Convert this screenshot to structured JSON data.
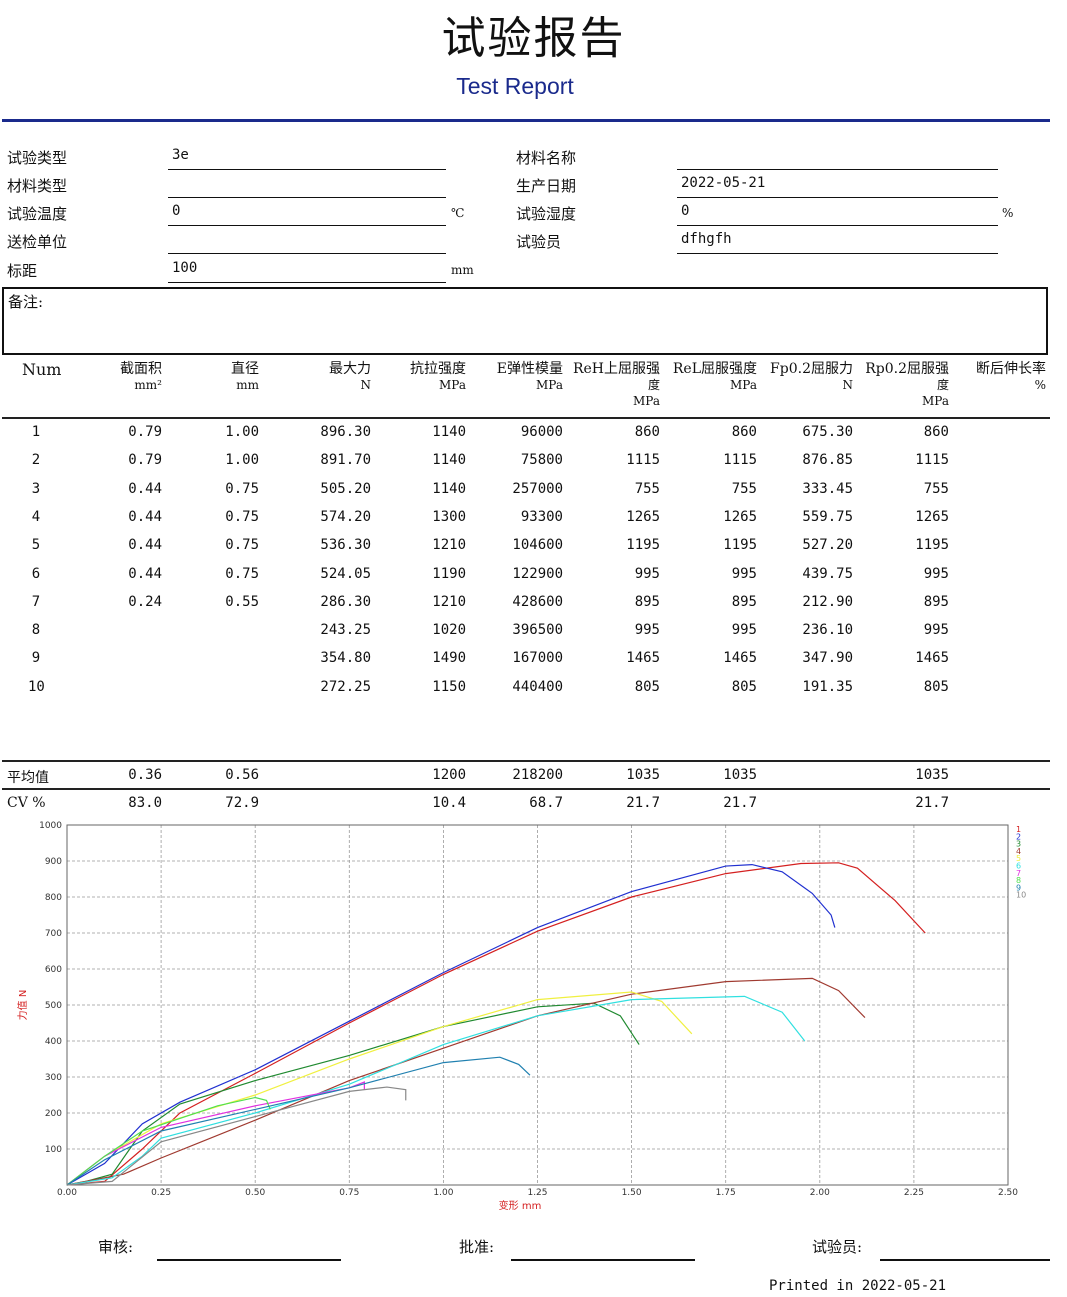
{
  "header": {
    "title": "试验报告",
    "subtitle": "Test Report"
  },
  "info": {
    "left": [
      {
        "label": "试验类型",
        "value": "3e",
        "unit": ""
      },
      {
        "label": "材料类型",
        "value": "",
        "unit": ""
      },
      {
        "label": "试验温度",
        "value": "0",
        "unit": "℃"
      },
      {
        "label": "送检单位",
        "value": "",
        "unit": ""
      },
      {
        "label": "标距",
        "value": "100",
        "unit": "mm"
      }
    ],
    "right": [
      {
        "label": "材料名称",
        "value": "",
        "unit": ""
      },
      {
        "label": "生产日期",
        "value": "2022-05-21",
        "unit": ""
      },
      {
        "label": "试验湿度",
        "value": "0",
        "unit": "%"
      },
      {
        "label": "试验员",
        "value": "dfhgfh",
        "unit": ""
      }
    ],
    "remark_label": "备注:"
  },
  "table": {
    "headers": [
      [
        "Num"
      ],
      [
        "截面积",
        "mm²"
      ],
      [
        "直径",
        "mm"
      ],
      [
        "最大力",
        "N"
      ],
      [
        "抗拉强度",
        "MPa"
      ],
      [
        "E弹性模量",
        "MPa"
      ],
      [
        "ReH上屈服强",
        "度",
        "MPa"
      ],
      [
        "ReL屈服强度",
        "MPa"
      ],
      [
        "Fp0.2屈服力",
        "N"
      ],
      [
        "Rp0.2屈服强",
        "度",
        "MPa"
      ],
      [
        "断后伸长率",
        "%"
      ]
    ],
    "rows": [
      [
        "1",
        "0.79",
        "1.00",
        "896.30",
        "1140",
        "96000",
        "860",
        "860",
        "675.30",
        "860",
        ""
      ],
      [
        "2",
        "0.79",
        "1.00",
        "891.70",
        "1140",
        "75800",
        "1115",
        "1115",
        "876.85",
        "1115",
        ""
      ],
      [
        "3",
        "0.44",
        "0.75",
        "505.20",
        "1140",
        "257000",
        "755",
        "755",
        "333.45",
        "755",
        ""
      ],
      [
        "4",
        "0.44",
        "0.75",
        "574.20",
        "1300",
        "93300",
        "1265",
        "1265",
        "559.75",
        "1265",
        ""
      ],
      [
        "5",
        "0.44",
        "0.75",
        "536.30",
        "1210",
        "104600",
        "1195",
        "1195",
        "527.20",
        "1195",
        ""
      ],
      [
        "6",
        "0.44",
        "0.75",
        "524.05",
        "1190",
        "122900",
        "995",
        "995",
        "439.75",
        "995",
        ""
      ],
      [
        "7",
        "0.24",
        "0.55",
        "286.30",
        "1210",
        "428600",
        "895",
        "895",
        "212.90",
        "895",
        ""
      ],
      [
        "8",
        "",
        "",
        "243.25",
        "1020",
        "396500",
        "995",
        "995",
        "236.10",
        "995",
        ""
      ],
      [
        "9",
        "",
        "",
        "354.80",
        "1490",
        "167000",
        "1465",
        "1465",
        "347.90",
        "1465",
        ""
      ],
      [
        "10",
        "",
        "",
        "272.25",
        "1150",
        "440400",
        "805",
        "805",
        "191.35",
        "805",
        ""
      ]
    ],
    "summary": [
      [
        "平均值",
        "0.36",
        "0.56",
        "",
        "1200",
        "218200",
        "1035",
        "1035",
        "",
        "1035",
        ""
      ],
      [
        "CV %",
        "83.0",
        "72.9",
        "",
        "10.4",
        "68.7",
        "21.7",
        "21.7",
        "",
        "21.7",
        ""
      ]
    ]
  },
  "chart_data": {
    "type": "line",
    "xlabel": "变形  mm",
    "ylabel": "力值  N",
    "xlim": [
      0,
      2.5
    ],
    "ylim": [
      0,
      1000
    ],
    "grid": true,
    "legend_placement": "right",
    "xticks": [
      "0.00",
      "0.25",
      "0.50",
      "0.75",
      "1.00",
      "1.25",
      "1.50",
      "1.75",
      "2.00",
      "2.25",
      "2.50"
    ],
    "yticks": [
      "100",
      "200",
      "300",
      "400",
      "500",
      "600",
      "700",
      "800",
      "900",
      "1000"
    ],
    "series": [
      {
        "name": "1",
        "color": "#d42020",
        "points": [
          [
            0,
            0
          ],
          [
            0.1,
            10
          ],
          [
            0.2,
            100
          ],
          [
            0.3,
            200
          ],
          [
            0.5,
            310
          ],
          [
            0.75,
            450
          ],
          [
            1.0,
            585
          ],
          [
            1.25,
            705
          ],
          [
            1.5,
            800
          ],
          [
            1.75,
            865
          ],
          [
            1.95,
            893
          ],
          [
            2.05,
            895
          ],
          [
            2.1,
            880
          ],
          [
            2.2,
            790
          ],
          [
            2.28,
            700
          ]
        ]
      },
      {
        "name": "2",
        "color": "#2030d0",
        "points": [
          [
            0,
            0
          ],
          [
            0.1,
            60
          ],
          [
            0.2,
            170
          ],
          [
            0.3,
            230
          ],
          [
            0.5,
            320
          ],
          [
            0.75,
            455
          ],
          [
            1.0,
            590
          ],
          [
            1.25,
            715
          ],
          [
            1.5,
            815
          ],
          [
            1.75,
            886
          ],
          [
            1.82,
            890
          ],
          [
            1.9,
            870
          ],
          [
            1.98,
            810
          ],
          [
            2.03,
            750
          ],
          [
            2.04,
            715
          ]
        ]
      },
      {
        "name": "3",
        "color": "#208a30",
        "points": [
          [
            0,
            0
          ],
          [
            0.05,
            10
          ],
          [
            0.12,
            30
          ],
          [
            0.2,
            150
          ],
          [
            0.3,
            225
          ],
          [
            0.5,
            290
          ],
          [
            0.75,
            360
          ],
          [
            1.0,
            440
          ],
          [
            1.25,
            495
          ],
          [
            1.4,
            505
          ],
          [
            1.47,
            470
          ],
          [
            1.52,
            390
          ]
        ]
      },
      {
        "name": "4",
        "color": "#a03a30",
        "points": [
          [
            0,
            0
          ],
          [
            0.15,
            30
          ],
          [
            0.25,
            75
          ],
          [
            0.5,
            180
          ],
          [
            0.75,
            290
          ],
          [
            1.0,
            380
          ],
          [
            1.25,
            470
          ],
          [
            1.5,
            530
          ],
          [
            1.75,
            565
          ],
          [
            1.98,
            574
          ],
          [
            2.05,
            540
          ],
          [
            2.12,
            465
          ]
        ]
      },
      {
        "name": "5",
        "color": "#f0f040",
        "points": [
          [
            0,
            0
          ],
          [
            0.1,
            80
          ],
          [
            0.25,
            170
          ],
          [
            0.5,
            250
          ],
          [
            0.75,
            350
          ],
          [
            1.0,
            440
          ],
          [
            1.25,
            515
          ],
          [
            1.5,
            536
          ],
          [
            1.58,
            510
          ],
          [
            1.66,
            420
          ]
        ]
      },
      {
        "name": "6",
        "color": "#30e0e0",
        "points": [
          [
            0,
            0
          ],
          [
            0.12,
            20
          ],
          [
            0.2,
            80
          ],
          [
            0.25,
            130
          ],
          [
            0.5,
            200
          ],
          [
            0.75,
            280
          ],
          [
            1.0,
            390
          ],
          [
            1.25,
            470
          ],
          [
            1.5,
            515
          ],
          [
            1.8,
            524
          ],
          [
            1.9,
            480
          ],
          [
            1.96,
            400
          ]
        ]
      },
      {
        "name": "7",
        "color": "#e030e0",
        "points": [
          [
            0,
            0
          ],
          [
            0.1,
            80
          ],
          [
            0.25,
            160
          ],
          [
            0.5,
            220
          ],
          [
            0.75,
            270
          ],
          [
            0.79,
            286
          ],
          [
            0.79,
            265
          ]
        ]
      },
      {
        "name": "8",
        "color": "#50e050",
        "points": [
          [
            0,
            0
          ],
          [
            0.1,
            80
          ],
          [
            0.2,
            150
          ],
          [
            0.4,
            220
          ],
          [
            0.5,
            243
          ],
          [
            0.53,
            235
          ],
          [
            0.54,
            210
          ]
        ]
      },
      {
        "name": "9",
        "color": "#2080b0",
        "points": [
          [
            0,
            0
          ],
          [
            0.1,
            70
          ],
          [
            0.25,
            150
          ],
          [
            0.5,
            210
          ],
          [
            0.75,
            270
          ],
          [
            1.0,
            340
          ],
          [
            1.15,
            355
          ],
          [
            1.2,
            335
          ],
          [
            1.23,
            305
          ]
        ]
      },
      {
        "name": "10",
        "color": "#888888",
        "points": [
          [
            0,
            0
          ],
          [
            0.12,
            10
          ],
          [
            0.25,
            120
          ],
          [
            0.5,
            190
          ],
          [
            0.75,
            260
          ],
          [
            0.85,
            272
          ],
          [
            0.9,
            265
          ],
          [
            0.9,
            235
          ]
        ]
      }
    ]
  },
  "footer": {
    "review": "审核:",
    "approve": "批准:",
    "tester": "试验员:",
    "printed": "Printed in 2022-05-21"
  }
}
